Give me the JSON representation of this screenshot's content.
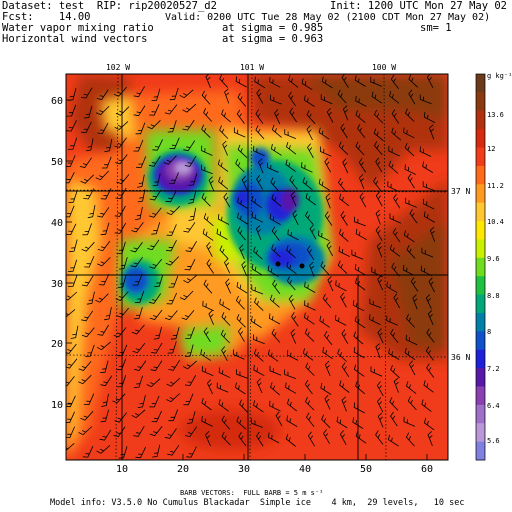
{
  "header": {
    "line1_left": "Dataset: test  RIP: rip20020527_d2",
    "line1_right": "Init: 1200 UTC Mon 27 May 02",
    "line2_left": "Fcst:    14.00",
    "line2_right": "Valid: 0200 UTC Tue 28 May 02 (2100 CDT Mon 27 May 02)",
    "line3_left": "Water vapor mixing ratio",
    "line3_mid": "at sigma = 0.985",
    "line3_right": "sm= 1",
    "line4_left": "Horizontal wind vectors",
    "line4_mid": "at sigma = 0.963"
  },
  "longitude_labels": [
    "102 W",
    "101 W",
    "100 W"
  ],
  "latitude_labels": [
    "37 N",
    "36 N"
  ],
  "x_ticks": [
    "10",
    "20",
    "30",
    "40",
    "50",
    "60"
  ],
  "y_ticks": [
    "10",
    "20",
    "30",
    "40",
    "50",
    "60"
  ],
  "colorbar": {
    "unit": "g kg⁻¹",
    "labels": [
      "13.6",
      "12",
      "11.2",
      "10.4",
      "9.6",
      "8.8",
      "8",
      "7.2",
      "6.4",
      "5.6"
    ],
    "colors": [
      "#6b3a1a",
      "#8b3a10",
      "#b03010",
      "#d42a10",
      "#f03c1a",
      "#ff6a1a",
      "#ff9a20",
      "#ffc830",
      "#ffe800",
      "#c8f000",
      "#70dc20",
      "#20c040",
      "#00a878",
      "#0080a8",
      "#1050c8",
      "#2020d8",
      "#5a18a8",
      "#8a40b0",
      "#a070c8",
      "#b898d8",
      "#8080e0"
    ]
  },
  "footer": {
    "barb_note": "BARB VECTORS:  FULL BARB = 5 m s⁻¹",
    "model_info": "Model info: V3.5.0 No Cumulus Blackadar  Simple ice    4 km,  29 levels,   10 sec"
  },
  "colors": {
    "background_red": "#f03c1a",
    "dark_brown": "#8b3a10",
    "moist_purple": "#8a40b0"
  }
}
